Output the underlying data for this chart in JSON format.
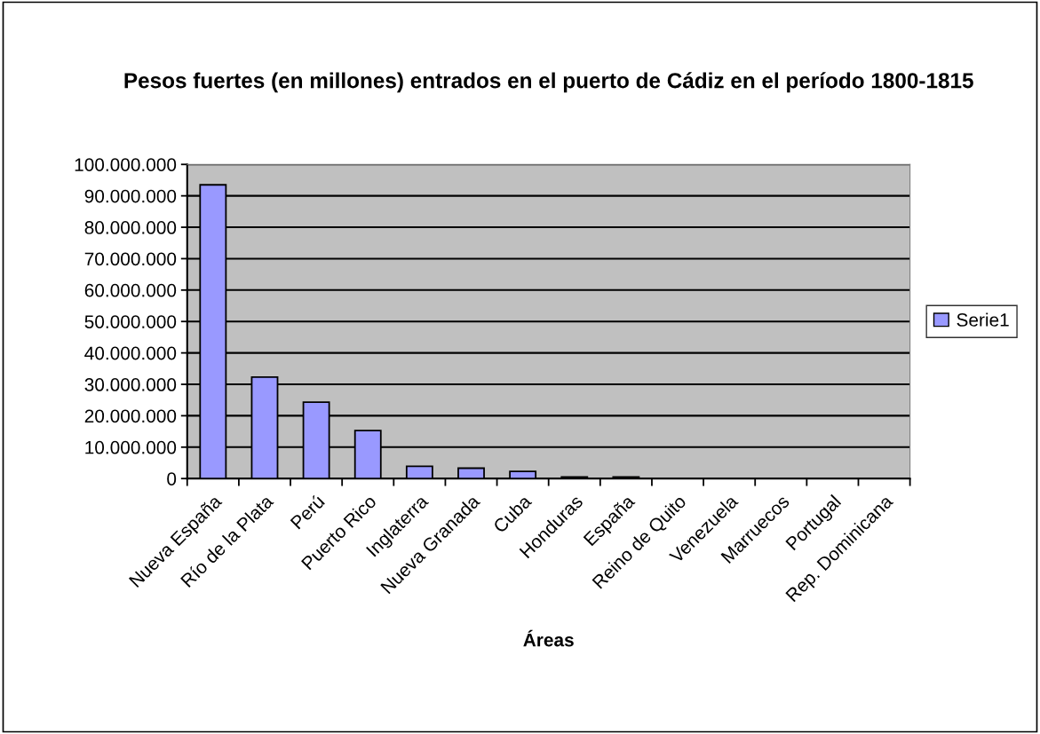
{
  "chart_data": {
    "type": "bar",
    "title": "Pesos fuertes (en millones) entrados en el puerto de Cádiz en el período 1800-1815",
    "xlabel": "Áreas",
    "categories": [
      "Nueva España",
      "Río de la Plata",
      "Perú",
      "Puerto Rico",
      "Inglaterra",
      "Nueva Granada",
      "Cuba",
      "Honduras",
      "España",
      "Reino de Quito",
      "Venezuela",
      "Marruecos",
      "Portugal",
      "Rep. Dominicana"
    ],
    "series": [
      {
        "name": "Serie1",
        "color": "#9999ff",
        "values": [
          93500000,
          32300000,
          24300000,
          15300000,
          3900000,
          3300000,
          2300000,
          500000,
          500000,
          0,
          0,
          0,
          0,
          0
        ]
      }
    ],
    "ylim": [
      0,
      100000000
    ],
    "yticks": [
      {
        "value": 0,
        "label": "0"
      },
      {
        "value": 10000000,
        "label": "10.000.000"
      },
      {
        "value": 20000000,
        "label": "20.000.000"
      },
      {
        "value": 30000000,
        "label": "30.000.000"
      },
      {
        "value": 40000000,
        "label": "40.000.000"
      },
      {
        "value": 50000000,
        "label": "50.000.000"
      },
      {
        "value": 60000000,
        "label": "60.000.000"
      },
      {
        "value": 70000000,
        "label": "70.000.000"
      },
      {
        "value": 80000000,
        "label": "80.000.000"
      },
      {
        "value": 90000000,
        "label": "90.000.000"
      },
      {
        "value": 100000000,
        "label": "100.000.000"
      }
    ],
    "grid": "y",
    "legend": "right"
  }
}
